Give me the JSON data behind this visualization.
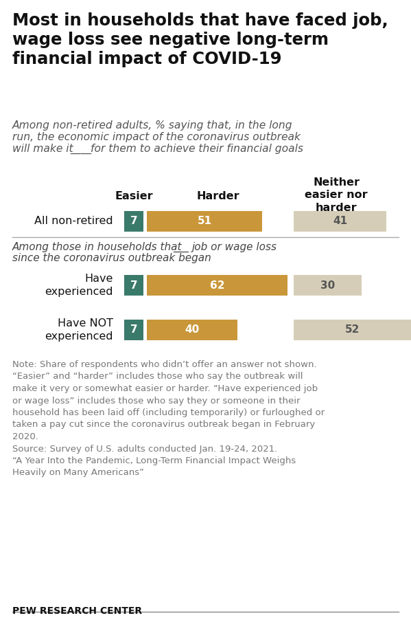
{
  "title": "Most in households that have faced job,\nwage loss see negative long-term\nfinancial impact of COVID-19",
  "col_headers": [
    "Easier",
    "Harder",
    "Neither\neasier nor\nharder"
  ],
  "rows": [
    {
      "label": "All non-retired",
      "easier": 7,
      "harder": 51,
      "neither": 41,
      "multiline": false
    },
    {
      "label": "Have\nexperienced",
      "easier": 7,
      "harder": 62,
      "neither": 30,
      "multiline": true
    },
    {
      "label": "Have NOT\nexperienced",
      "easier": 7,
      "harder": 40,
      "neither": 52,
      "multiline": true
    }
  ],
  "section_label_part1": "Among those in households that",
  "section_label_part2": "job or wage loss",
  "section_label_line2": "since the coronavirus outbreak began",
  "color_easier": "#3a7a6a",
  "color_harder": "#c9973a",
  "color_neither": "#d5cdb7",
  "note_text": "Note: Share of respondents who didn’t offer an answer not shown.\n“Easier” and “harder” includes those who say the outbreak will\nmake it very or somewhat easier or harder. “Have experienced job\nor wage loss” includes those who say they or someone in their\nhousehold has been laid off (including temporarily) or furloughed or\ntaken a pay cut since the coronavirus outbreak began in February\n2020.\nSource: Survey of U.S. adults conducted Jan. 19-24, 2021.\n“A Year Into the Pandemic, Long-Term Financial Impact Weighs\nHeavily on Many Americans”",
  "source_label": "PEW RESEARCH CENTER",
  "background_color": "#ffffff",
  "subtitle_line1": "Among non-retired adults, % saying that, in the long",
  "subtitle_line2": "run, the economic impact of the coronavirus outbreak",
  "subtitle_line3_pre": "will make it",
  "subtitle_line3_post": "for them to achieve their financial goals"
}
